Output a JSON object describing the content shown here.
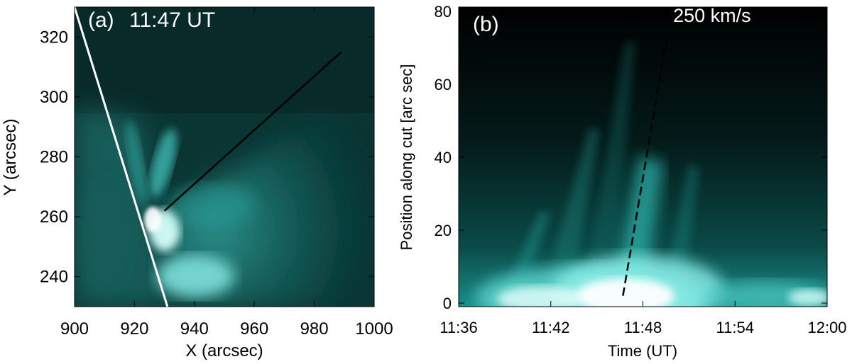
{
  "chart_data": [
    {
      "type": "heatmap",
      "panel_label": "(a)",
      "title": "11:47 UT",
      "xlabel": "X (arcsec)",
      "ylabel": "Y (arcsec)",
      "xlim": [
        900,
        1000
      ],
      "ylim": [
        230,
        330
      ],
      "xticks": [
        900,
        920,
        940,
        960,
        980,
        1000
      ],
      "yticks": [
        240,
        260,
        280,
        300,
        320
      ],
      "overlays": {
        "limb_line": {
          "color": "#ffffff",
          "points": [
            [
              900,
              330
            ],
            [
              931,
              230
            ]
          ]
        },
        "cut_line": {
          "color": "#000000",
          "points": [
            [
              930,
              262
            ],
            [
              989,
              315
            ]
          ]
        }
      },
      "colormap": [
        "#062624",
        "#0c5450",
        "#2aa8a2",
        "#d6fffb"
      ]
    },
    {
      "type": "heatmap",
      "panel_label": "(b)",
      "title": "",
      "xlabel": "Time (UT)",
      "ylabel": "Position along cut [arc sec]",
      "xlim": [
        "11:36",
        "12:00"
      ],
      "ylim": [
        0,
        80
      ],
      "xticks": [
        "11:36",
        "11:42",
        "11:48",
        "11:54",
        "12:00"
      ],
      "yticks": [
        0,
        20,
        40,
        60,
        80
      ],
      "fit_line": {
        "label": "250 km/s",
        "style": "dashed",
        "color": "#000000",
        "points": [
          [
            "11:46:42",
            2
          ],
          [
            "11:49:36",
            74
          ]
        ]
      },
      "colormap": [
        "#000000",
        "#053331",
        "#1fa9a3",
        "#ffffff"
      ]
    }
  ]
}
